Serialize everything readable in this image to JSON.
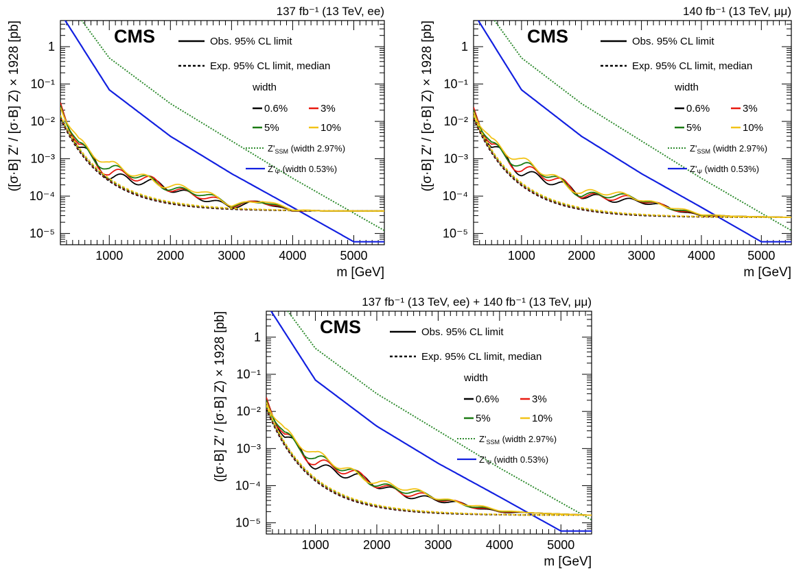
{
  "common": {
    "ylabel": "([σ·B] Z′ / [σ·B] Z) × 1928 [pb]",
    "xlabel": "m [GeV]",
    "cms": "CMS",
    "legend": {
      "obs": "Obs. 95% CL limit",
      "exp": "Exp. 95% CL limit, median",
      "width_title": "width",
      "w1": "0.6%",
      "w2": "3%",
      "w3": "5%",
      "w4": "10%",
      "ssm_prefix": "Z'",
      "ssm_sub": "SSM",
      "ssm_suffix": " (width 2.97%)",
      "psi_prefix": "Z'",
      "psi_sub": "Ψ",
      "psi_suffix": " (width 0.53%)"
    },
    "colors": {
      "w0_6": "#000000",
      "w3": "#e8180f",
      "w5": "#1a7a12",
      "w10": "#f2c318",
      "ssm": "#2e8b2e",
      "psi": "#1220e0"
    }
  },
  "chart_data": [
    {
      "type": "line",
      "lumi_text": "137 fb⁻¹ (13 TeV, ee)",
      "xlim": [
        200,
        5500
      ],
      "ylim": [
        5e-06,
        5
      ],
      "yscale": "log",
      "x_ticks": [
        1000,
        2000,
        3000,
        4000,
        5000
      ],
      "y_ticks": [
        "10⁻⁵",
        "10⁻⁴",
        "10⁻³",
        "10⁻²",
        "10⁻¹",
        "1"
      ],
      "plateau": 4e-05,
      "series": [
        {
          "name": "Z'SSM (width 2.97%)",
          "x": [
            200,
            1000,
            2000,
            3000,
            4000,
            5000,
            5500
          ],
          "y": [
            30,
            0.5,
            0.03,
            0.003,
            0.0003,
            3.5e-05,
            1.2e-05
          ]
        },
        {
          "name": "Z'Ψ (width 0.53%)",
          "x": [
            200,
            1000,
            2000,
            3000,
            4000,
            5000
          ],
          "y": [
            8,
            0.07,
            0.004,
            0.0004,
            5e-05,
            6e-06
          ]
        },
        {
          "name": "Obs. 95% CL limit, width 0.6%",
          "x": [
            200,
            500,
            1000,
            1500,
            2000,
            2500,
            3000,
            3500,
            4000,
            5500
          ],
          "y": [
            0.02,
            0.002,
            0.0004,
            0.00025,
            0.00015,
            0.0001,
            5e-05,
            7e-05,
            4e-05,
            4e-05
          ]
        },
        {
          "name": "Obs. 95% CL limit, width 10%",
          "x": [
            200,
            500,
            1000,
            1500,
            2000,
            2500,
            3000,
            3500,
            4000,
            5500
          ],
          "y": [
            0.03,
            0.003,
            0.0007,
            0.0004,
            0.0004,
            0.00015,
            0.0001,
            9e-05,
            4.5e-05,
            4e-05
          ]
        }
      ]
    },
    {
      "type": "line",
      "lumi_text": "140 fb⁻¹ (13 TeV, μμ)",
      "xlim": [
        200,
        5500
      ],
      "ylim": [
        5e-06,
        5
      ],
      "yscale": "log",
      "x_ticks": [
        1000,
        2000,
        3000,
        4000,
        5000
      ],
      "y_ticks": [
        "10⁻⁵",
        "10⁻⁴",
        "10⁻³",
        "10⁻²",
        "10⁻¹",
        "1"
      ],
      "plateau": 2.7e-05,
      "series": [
        {
          "name": "Z'SSM (width 2.97%)",
          "x": [
            200,
            1000,
            2000,
            3000,
            4000,
            5000,
            5500
          ],
          "y": [
            30,
            0.5,
            0.03,
            0.003,
            0.0003,
            3.5e-05,
            1.2e-05
          ]
        },
        {
          "name": "Z'Ψ (width 0.53%)",
          "x": [
            200,
            1000,
            2000,
            3000,
            4000,
            5000
          ],
          "y": [
            8,
            0.07,
            0.004,
            0.0004,
            5e-05,
            6e-06
          ]
        },
        {
          "name": "Obs. 95% CL limit, width 0.6%",
          "x": [
            200,
            500,
            1000,
            1500,
            2000,
            2500,
            3000,
            4000,
            5500
          ],
          "y": [
            0.015,
            0.002,
            0.0005,
            0.00025,
            0.0001,
            9e-05,
            7e-05,
            3e-05,
            2.7e-05
          ]
        }
      ]
    },
    {
      "type": "line",
      "lumi_text": "137 fb⁻¹ (13 TeV, ee) + 140 fb⁻¹ (13 TeV, μμ)",
      "xlim": [
        200,
        5500
      ],
      "ylim": [
        5e-06,
        5
      ],
      "yscale": "log",
      "x_ticks": [
        1000,
        2000,
        3000,
        4000,
        5000
      ],
      "y_ticks": [
        "10⁻⁵",
        "10⁻⁴",
        "10⁻³",
        "10⁻²",
        "10⁻¹",
        "1"
      ],
      "plateau": 1.6e-05,
      "series": [
        {
          "name": "Z'SSM (width 2.97%)",
          "x": [
            200,
            1000,
            2000,
            3000,
            4000,
            5000,
            5500
          ],
          "y": [
            30,
            0.5,
            0.03,
            0.003,
            0.0003,
            3.5e-05,
            1.2e-05
          ]
        },
        {
          "name": "Z'Ψ (width 0.53%)",
          "x": [
            200,
            1000,
            2000,
            3000,
            4000,
            5000
          ],
          "y": [
            8,
            0.07,
            0.004,
            0.0004,
            5e-05,
            6e-06
          ]
        },
        {
          "name": "Obs. 95% CL limit, width 0.6%",
          "x": [
            200,
            500,
            1000,
            1500,
            2000,
            2500,
            3000,
            4000,
            5500
          ],
          "y": [
            0.015,
            0.002,
            0.0004,
            0.0002,
            0.0001,
            6e-05,
            4e-05,
            2e-05,
            1.6e-05
          ]
        }
      ]
    }
  ]
}
